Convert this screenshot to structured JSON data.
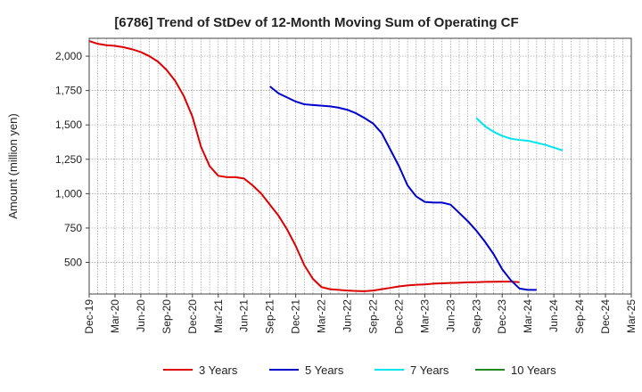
{
  "chart_data": {
    "type": "line",
    "title": "[6786]  Trend of StDev of 12-Month Moving Sum of Operating CF",
    "ylabel": "Amount (million yen)",
    "xlabel": "",
    "x_start": "Dec-19",
    "x_end": "Mar-25",
    "x_ticks": [
      "Dec-19",
      "Mar-20",
      "Jun-20",
      "Sep-20",
      "Dec-20",
      "Mar-21",
      "Jun-21",
      "Sep-21",
      "Dec-21",
      "Mar-22",
      "Jun-22",
      "Sep-22",
      "Dec-22",
      "Mar-23",
      "Jun-23",
      "Sep-23",
      "Dec-23",
      "Mar-24",
      "Jun-24",
      "Sep-24",
      "Dec-24",
      "Mar-25"
    ],
    "y_ticks": [
      500,
      750,
      1000,
      1250,
      1500,
      1750,
      2000
    ],
    "y_tick_labels": [
      "500",
      "750",
      "1,000",
      "1,250",
      "1,500",
      "1,750",
      "2,000"
    ],
    "ylim": [
      270,
      2130
    ],
    "grid": true,
    "legend_position": "bottom",
    "series": [
      {
        "name": "3 Years",
        "color": "#dd0000",
        "start": "Dec-19",
        "values": [
          2110,
          2090,
          2080,
          2075,
          2065,
          2050,
          2030,
          2000,
          1960,
          1900,
          1820,
          1710,
          1560,
          1340,
          1200,
          1130,
          1120,
          1120,
          1110,
          1060,
          1000,
          920,
          840,
          740,
          620,
          480,
          380,
          320,
          305,
          300,
          295,
          292,
          290,
          295,
          305,
          315,
          325,
          332,
          337,
          340,
          345,
          348,
          350,
          352,
          355,
          356,
          358,
          359,
          360,
          360,
          356
        ]
      },
      {
        "name": "5 Years",
        "color": "#0000cc",
        "start": "Sep-21",
        "values": [
          1780,
          1730,
          1700,
          1670,
          1650,
          1645,
          1640,
          1635,
          1625,
          1610,
          1585,
          1550,
          1510,
          1440,
          1320,
          1200,
          1060,
          980,
          940,
          935,
          935,
          920,
          860,
          800,
          730,
          650,
          560,
          450,
          370,
          310,
          300,
          300
        ]
      },
      {
        "name": "7 Years",
        "color": "#00e5ee",
        "start": "Sep-23",
        "values": [
          1550,
          1490,
          1450,
          1420,
          1400,
          1390,
          1385,
          1370,
          1355,
          1335,
          1315
        ]
      },
      {
        "name": "10 Years",
        "color": "#228822",
        "start": "Sep-24",
        "values": []
      }
    ]
  }
}
